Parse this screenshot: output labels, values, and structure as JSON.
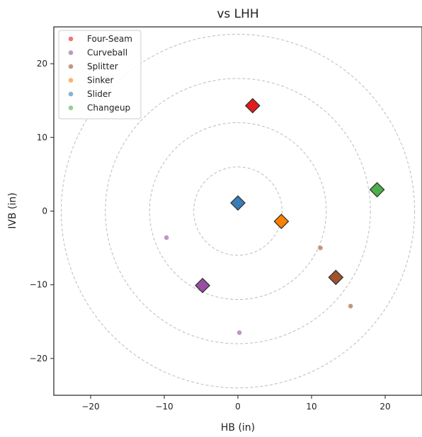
{
  "chart_data": {
    "type": "scatter",
    "title": "vs LHH",
    "xlabel": "HB (in)",
    "ylabel": "IVB (in)",
    "xlim": [
      -25,
      25
    ],
    "ylim": [
      -25,
      25
    ],
    "xticks": [
      -20,
      -10,
      0,
      10,
      20
    ],
    "yticks": [
      -20,
      -10,
      0,
      10,
      20
    ],
    "xtick_labels": [
      "−20",
      "−10",
      "0",
      "10",
      "20"
    ],
    "ytick_labels": [
      "−20",
      "−10",
      "0",
      "10",
      "20"
    ],
    "reference_circles_radius": [
      6,
      12,
      18,
      24
    ],
    "grid": false,
    "legend_position": "top-left",
    "series": [
      {
        "name": "Four-Seam",
        "color": "#e41a1c",
        "mean": {
          "x": 2.0,
          "y": 14.3
        },
        "points": []
      },
      {
        "name": "Curveball",
        "color": "#984ea3",
        "mean": {
          "x": -4.8,
          "y": -10.1
        },
        "points": [
          {
            "x": -9.7,
            "y": -3.6
          },
          {
            "x": 0.2,
            "y": -16.5
          }
        ]
      },
      {
        "name": "Splitter",
        "color": "#a0522d",
        "mean": {
          "x": 13.3,
          "y": -9.0
        },
        "points": [
          {
            "x": 11.2,
            "y": -5.0
          },
          {
            "x": 15.3,
            "y": -12.9
          }
        ]
      },
      {
        "name": "Sinker",
        "color": "#ff7f00",
        "mean": {
          "x": 5.9,
          "y": -1.4
        },
        "points": []
      },
      {
        "name": "Slider",
        "color": "#377eb8",
        "mean": {
          "x": 0.0,
          "y": 1.1
        },
        "points": []
      },
      {
        "name": "Changeup",
        "color": "#4daf4a",
        "mean": {
          "x": 18.9,
          "y": 2.9
        },
        "points": []
      }
    ]
  }
}
